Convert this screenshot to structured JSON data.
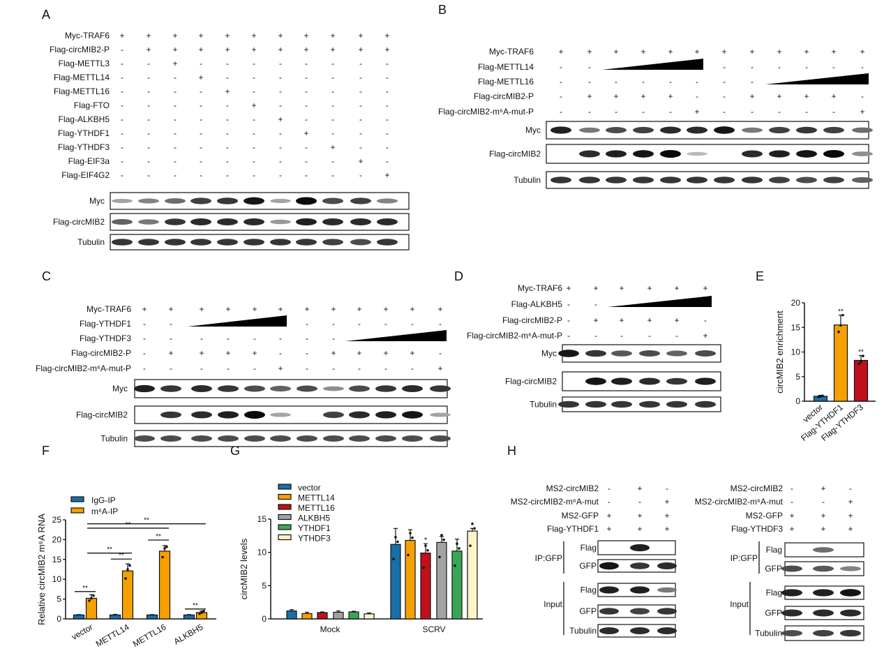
{
  "panel_labels": {
    "A": "A",
    "B": "B",
    "C": "C",
    "D": "D",
    "E": "E",
    "F": "F",
    "G": "G",
    "H": "H"
  },
  "blots": {
    "A": {
      "rows": [
        {
          "label": "Myc-TRAF6",
          "signs": [
            "+",
            "+",
            "+",
            "+",
            "+",
            "+",
            "+",
            "+",
            "+",
            "+",
            "+"
          ]
        },
        {
          "label": "Flag-circMIB2-P",
          "signs": [
            "-",
            "+",
            "+",
            "+",
            "+",
            "+",
            "+",
            "+",
            "+",
            "+",
            "+"
          ]
        },
        {
          "label": "Flag-METTL3",
          "signs": [
            "-",
            "-",
            "+",
            "-",
            "-",
            "-",
            "-",
            "-",
            "-",
            "-",
            "-"
          ]
        },
        {
          "label": "Flag-METTL14",
          "signs": [
            "-",
            "-",
            "-",
            "+",
            "-",
            "-",
            "-",
            "-",
            "-",
            "-",
            "-"
          ]
        },
        {
          "label": "Flag-METTL16",
          "signs": [
            "-",
            "-",
            "-",
            "-",
            "+",
            "-",
            "-",
            "-",
            "-",
            "-",
            "-"
          ]
        },
        {
          "label": "Flag-FTO",
          "signs": [
            "-",
            "-",
            "-",
            "-",
            "-",
            "+",
            "-",
            "-",
            "-",
            "-",
            "-"
          ]
        },
        {
          "label": "Flag-ALKBH5",
          "signs": [
            "-",
            "-",
            "-",
            "-",
            "-",
            "-",
            "+",
            "-",
            "-",
            "-",
            "-"
          ]
        },
        {
          "label": "Flag-YTHDF1",
          "signs": [
            "-",
            "-",
            "-",
            "-",
            "-",
            "-",
            "-",
            "+",
            "-",
            "-",
            "-"
          ]
        },
        {
          "label": "Flag-YTHDF3",
          "signs": [
            "-",
            "-",
            "-",
            "-",
            "-",
            "-",
            "-",
            "-",
            "+",
            "-",
            "-"
          ]
        },
        {
          "label": "Flag-EIF3a",
          "signs": [
            "-",
            "-",
            "-",
            "-",
            "-",
            "-",
            "-",
            "-",
            "-",
            "+",
            "-"
          ]
        },
        {
          "label": "Flag-EIF4G2",
          "signs": [
            "-",
            "-",
            "-",
            "-",
            "-",
            "-",
            "-",
            "-",
            "-",
            "-",
            "+"
          ]
        }
      ],
      "bands": [
        {
          "label": "Myc",
          "intensity": [
            0.3,
            0.45,
            0.55,
            0.75,
            0.8,
            0.95,
            0.3,
            1,
            0.7,
            0.75,
            0.45
          ]
        },
        {
          "label": "Flag-circMIB2",
          "intensity": [
            0.6,
            0.5,
            0.8,
            0.85,
            0.85,
            0.85,
            0.35,
            0.9,
            0.85,
            0.85,
            0.85
          ]
        },
        {
          "label": "Tubulin",
          "intensity": [
            0.8,
            0.8,
            0.8,
            0.8,
            0.8,
            0.8,
            0.8,
            0.8,
            0.75,
            0.7,
            0.8
          ]
        }
      ]
    },
    "B": {
      "rows": [
        {
          "label": "Myc-TRAF6",
          "signs": [
            "+",
            "+",
            "+",
            "+",
            "+",
            "+",
            "+",
            "+",
            "+",
            "+",
            "+",
            "+"
          ]
        },
        {
          "label": "Flag-METTL14",
          "signs": [
            "-",
            "-",
            "",
            "",
            "",
            "",
            "-",
            "-",
            "-",
            "-",
            "-",
            "-"
          ],
          "ramp": [
            2,
            5
          ]
        },
        {
          "label": "Flag-METTL16",
          "signs": [
            "-",
            "-",
            "-",
            "-",
            "-",
            "-",
            "-",
            "-",
            "",
            "",
            "",
            ""
          ],
          "ramp": [
            8,
            11
          ]
        },
        {
          "label": "Flag-circMIB2-P",
          "signs": [
            "-",
            "+",
            "+",
            "+",
            "+",
            "-",
            "-",
            "+",
            "+",
            "+",
            "+",
            "-"
          ]
        },
        {
          "label": "Flag-circMIB2-m⁶A-mut-P",
          "signs": [
            "-",
            "-",
            "-",
            "-",
            "-",
            "+",
            "-",
            "-",
            "-",
            "-",
            "-",
            "+"
          ]
        }
      ],
      "bands": [
        {
          "label": "Myc",
          "intensity": [
            0.9,
            0.5,
            0.7,
            0.75,
            0.85,
            0.85,
            0.95,
            0.5,
            0.75,
            0.8,
            0.75,
            0.55
          ]
        },
        {
          "label": "Flag-circMIB2",
          "intensity": [
            0,
            0.85,
            0.9,
            0.95,
            1,
            0.2,
            0,
            0.85,
            0.9,
            0.95,
            1,
            0.4
          ]
        },
        {
          "label": "Tubulin",
          "intensity": [
            0.8,
            0.8,
            0.8,
            0.8,
            0.8,
            0.8,
            0.8,
            0.8,
            0.75,
            0.7,
            0.75,
            0.6
          ]
        }
      ]
    },
    "C": {
      "rows": [
        {
          "label": "Myc-TRAF6",
          "signs": [
            "+",
            "+",
            "+",
            "+",
            "+",
            "+",
            "+",
            "+",
            "+",
            "+",
            "+",
            "+"
          ]
        },
        {
          "label": "Flag-YTHDF1",
          "signs": [
            "-",
            "-",
            "",
            "",
            "",
            "",
            "-",
            "-",
            "-",
            "-",
            "-",
            "-"
          ],
          "ramp": [
            2,
            5
          ]
        },
        {
          "label": "Flag-YTHDF3",
          "signs": [
            "-",
            "-",
            "-",
            "-",
            "-",
            "-",
            "-",
            "-",
            "",
            "",
            "",
            ""
          ],
          "ramp": [
            8,
            11
          ]
        },
        {
          "label": "Flag-circMIB2-P",
          "signs": [
            "-",
            "+",
            "+",
            "+",
            "+",
            "-",
            "-",
            "+",
            "+",
            "+",
            "+",
            "-"
          ]
        },
        {
          "label": "Flag-circMIB2-m⁶A-mut-P",
          "signs": [
            "-",
            "-",
            "-",
            "-",
            "-",
            "+",
            "-",
            "-",
            "-",
            "-",
            "-",
            "+"
          ]
        }
      ],
      "bands": [
        {
          "label": "Myc",
          "intensity": [
            0.9,
            0.8,
            0.85,
            0.8,
            0.7,
            0.6,
            0.7,
            0.4,
            0.7,
            0.8,
            0.85,
            0.8
          ]
        },
        {
          "label": "Flag-circMIB2",
          "intensity": [
            0,
            0.8,
            0.85,
            0.9,
            1,
            0.3,
            0,
            0.75,
            0.85,
            0.9,
            0.95,
            0.3
          ]
        },
        {
          "label": "Tubulin",
          "intensity": [
            0.7,
            0.7,
            0.7,
            0.7,
            0.7,
            0.7,
            0.7,
            0.7,
            0.7,
            0.7,
            0.7,
            0.7
          ]
        }
      ]
    },
    "D": {
      "rows": [
        {
          "label": "Myc-TRAF6",
          "signs": [
            "+",
            "+",
            "+",
            "+",
            "+",
            "+"
          ]
        },
        {
          "label": "Flag-ALKBH5",
          "signs": [
            "-",
            "-",
            "",
            "",
            "",
            ""
          ],
          "ramp": [
            2,
            5
          ]
        },
        {
          "label": "Flag-circMIB2-P",
          "signs": [
            "-",
            "+",
            "+",
            "+",
            "+",
            "-"
          ]
        },
        {
          "label": "Flag-circMIB2-m⁶A-mut-P",
          "signs": [
            "-",
            "-",
            "-",
            "-",
            "-",
            "+"
          ]
        }
      ],
      "bands": [
        {
          "label": "Myc",
          "intensity": [
            0.95,
            0.8,
            0.65,
            0.7,
            0.6,
            0.7
          ]
        },
        {
          "label": "Flag-circMIB2",
          "intensity": [
            0,
            0.95,
            0.9,
            0.85,
            0.8,
            0.9
          ]
        },
        {
          "label": "Tubulin",
          "intensity": [
            0.8,
            0.8,
            0.8,
            0.8,
            0.8,
            0.8
          ]
        }
      ]
    },
    "H1": {
      "rows": [
        {
          "label": "MS2-circMIB2",
          "signs": [
            "-",
            "+",
            "-"
          ]
        },
        {
          "label": "MS2-circMIB2-m⁶A-mut",
          "signs": [
            "-",
            "-",
            "+"
          ]
        },
        {
          "label": "MS2-GFP",
          "signs": [
            "+",
            "+",
            "+"
          ]
        },
        {
          "label": "Flag-YTHDF1",
          "signs": [
            "+",
            "+",
            "+"
          ]
        }
      ],
      "groups": [
        {
          "label": "IP:GFP"
        },
        {
          "label": "Input"
        }
      ],
      "bands": [
        {
          "label": "Flag",
          "intensity": [
            0,
            0.9,
            0
          ]
        },
        {
          "label": "GFP",
          "intensity": [
            0.95,
            0.8,
            0.85
          ]
        },
        {
          "label": "Flag",
          "intensity": [
            0.9,
            0.9,
            0.5
          ]
        },
        {
          "label": "GFP",
          "intensity": [
            0.8,
            0.75,
            0.8
          ]
        },
        {
          "label": "Tubulin",
          "intensity": [
            0.85,
            0.85,
            0.85
          ]
        }
      ]
    },
    "H2": {
      "rows": [
        {
          "label": "MS2-circMIB2",
          "signs": [
            "-",
            "+",
            "-"
          ]
        },
        {
          "label": "MS2-circMIB2-m⁶A-mut",
          "signs": [
            "-",
            "-",
            "+"
          ]
        },
        {
          "label": "MS2-GFP",
          "signs": [
            "+",
            "+",
            "+"
          ]
        },
        {
          "label": "Flag-YTHDF3",
          "signs": [
            "+",
            "+",
            "+"
          ]
        }
      ],
      "groups": [
        {
          "label": "IP:GFP"
        },
        {
          "label": "Input"
        }
      ],
      "bands": [
        {
          "label": "Flag",
          "intensity": [
            0,
            0.55,
            0
          ]
        },
        {
          "label": "GFP",
          "intensity": [
            0.7,
            0.65,
            0.45
          ]
        },
        {
          "label": "Flag",
          "intensity": [
            0.9,
            0.9,
            0.95
          ]
        },
        {
          "label": "GFP",
          "intensity": [
            0.85,
            0.85,
            0.85
          ]
        },
        {
          "label": "Tubulin",
          "intensity": [
            0.7,
            0.75,
            0.8
          ]
        }
      ]
    }
  },
  "chart_data": [
    {
      "id": "E",
      "type": "bar",
      "title": "",
      "xlabel": "",
      "ylabel": "circMIB2 enrichment",
      "ylim": [
        0,
        20
      ],
      "yticks": [
        "0",
        "5",
        "10",
        "15",
        "20"
      ],
      "categories": [
        "vector",
        "Flag-YTHDF1",
        "Flag-YTHDF3"
      ],
      "values": [
        1.0,
        15.5,
        8.3
      ],
      "errors": [
        0.2,
        2.0,
        1.0
      ],
      "points": [
        [
          0.9,
          1.0,
          1.1
        ],
        [
          14.1,
          15.4,
          17.5
        ],
        [
          7.6,
          8.0,
          9.2
        ]
      ],
      "significance": [
        "",
        "**",
        "**"
      ],
      "colors": [
        "#1a6fa8",
        "#f5a000",
        "#c0101c"
      ]
    },
    {
      "id": "F",
      "type": "bar",
      "xlabel": "",
      "ylabel": "Relative circMIB2 m⁶A RNA",
      "ylim": [
        0,
        25
      ],
      "yticks": [
        "0",
        "5",
        "10",
        "15",
        "20",
        "25"
      ],
      "categories": [
        "vector",
        "METTL14",
        "METTL16",
        "ALKBH5"
      ],
      "legend": "top-left",
      "series": [
        {
          "name": "IgG-IP",
          "color": "#1a6fa8",
          "values": [
            1.0,
            1.0,
            1.0,
            1.0
          ],
          "errors": [
            0.1,
            0.15,
            0.1,
            0.1
          ]
        },
        {
          "name": "m⁶A-IP",
          "color": "#f5a000",
          "values": [
            5.2,
            12.1,
            17.1,
            1.6
          ],
          "errors": [
            0.9,
            1.8,
            1.4,
            0.4
          ],
          "points": [
            [
              4.6,
              5.2,
              5.9
            ],
            [
              10.2,
              12.5,
              13.5
            ],
            [
              15.6,
              17.8,
              18.2
            ],
            [
              1.3,
              1.6,
              2.0
            ]
          ]
        }
      ],
      "comparisons": [
        {
          "from": [
            0,
            0
          ],
          "to": [
            0,
            1
          ],
          "y": 6.9,
          "label": "**"
        },
        {
          "from": [
            1,
            1
          ],
          "to": [
            1,
            0
          ],
          "y": 15.1,
          "label": "**"
        },
        {
          "from": [
            2,
            0
          ],
          "to": [
            2,
            1
          ],
          "y": 19.9,
          "label": "**"
        },
        {
          "from": [
            3,
            0
          ],
          "to": [
            3,
            1
          ],
          "y": 2.5,
          "label": "**"
        },
        {
          "from": [
            0,
            1
          ],
          "to": [
            1,
            1
          ],
          "y": 16.6,
          "label": "**"
        },
        {
          "from": [
            0,
            1
          ],
          "to": [
            2,
            1
          ],
          "y": 22.9,
          "label": "**"
        },
        {
          "from": [
            0,
            1
          ],
          "to": [
            3,
            1
          ],
          "y": 24.0,
          "label": "**"
        }
      ]
    },
    {
      "id": "G",
      "type": "bar",
      "xlabel": "",
      "ylabel": "circMIB2 levels",
      "ylim": [
        0,
        15
      ],
      "yticks": [
        "0",
        "5",
        "10",
        "15"
      ],
      "categories": [
        "Mock",
        "SCRV"
      ],
      "legend": "top-left",
      "series": [
        {
          "name": "vector",
          "color": "#1a6fa8",
          "values": [
            1.2,
            11.2
          ],
          "errors": [
            0.2,
            2.4
          ],
          "sig": [
            "",
            ""
          ]
        },
        {
          "name": "METTL14",
          "color": "#f5a000",
          "values": [
            0.8,
            11.8
          ],
          "errors": [
            0.2,
            1.6
          ],
          "sig": [
            "",
            ""
          ]
        },
        {
          "name": "METTL16",
          "color": "#c0101c",
          "values": [
            0.95,
            9.9
          ],
          "errors": [
            0.1,
            1.4
          ],
          "sig": [
            "",
            "*"
          ]
        },
        {
          "name": "ALKBH5",
          "color": "#a3a3a3",
          "values": [
            1.0,
            11.5
          ],
          "errors": [
            0.2,
            0.9
          ],
          "sig": [
            "",
            ""
          ]
        },
        {
          "name": "YTHDF1",
          "color": "#3aa655",
          "values": [
            1.05,
            10.2
          ],
          "errors": [
            0.1,
            1.8
          ],
          "sig": [
            "",
            ""
          ]
        },
        {
          "name": "YTHDF3",
          "color": "#fff3c8",
          "values": [
            0.75,
            13.2
          ],
          "errors": [
            0.15,
            0.4
          ],
          "sig": [
            "",
            ""
          ]
        }
      ]
    }
  ]
}
